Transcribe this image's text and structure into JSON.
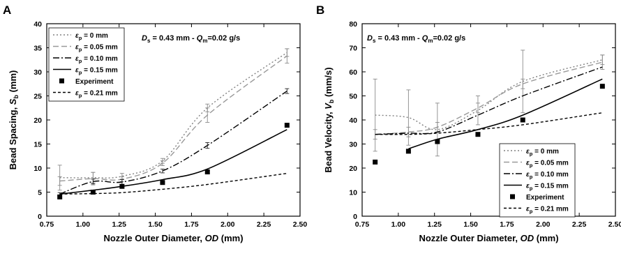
{
  "annotation": {
    "D": "D",
    "D_sub": "s",
    "mid": " = 0.43 mm - ",
    "Q": "Q",
    "Q_sub": "m",
    "tail": "=0.02 g/s"
  },
  "legend_entries": [
    {
      "eps": "ε",
      "sub": "p",
      "text": " = 0 mm"
    },
    {
      "eps": "ε",
      "sub": "p",
      "text": " = 0.05 mm"
    },
    {
      "eps": "ε",
      "sub": "p",
      "text": " = 0.10 mm"
    },
    {
      "eps": "ε",
      "sub": "p",
      "text": " = 0.15 mm"
    },
    {
      "eps": "",
      "sub": "",
      "text": "Experiment"
    },
    {
      "eps": "ε",
      "sub": "p",
      "text": " = 0.21 mm"
    }
  ],
  "styles": {
    "colors": {
      "eps0": "#808080",
      "eps005": "#999999",
      "eps010": "#000000",
      "eps015": "#000000",
      "eps021": "#000000",
      "experiment": "#000000"
    },
    "dash": {
      "eps0": "2,3",
      "eps005": "8,4",
      "eps010": "9,3,2,3",
      "eps015": "",
      "eps021": "4,3"
    }
  },
  "chart_data": [
    {
      "panel_label": "A",
      "type": "line",
      "xlabel": "Nozzle Outer Diameter, OD (mm)",
      "xlabel_parts": {
        "main": "Nozzle Outer Diameter, ",
        "italic": "OD",
        "tail": " (mm)"
      },
      "ylabel_parts": {
        "main": "Bead Spacing, ",
        "italic": "S",
        "sub": "b",
        "tail": " (mm)"
      },
      "xlim": [
        0.75,
        2.5
      ],
      "ylim": [
        0,
        40
      ],
      "xticks": [
        "0.75",
        "1.00",
        "1.25",
        "1.50",
        "1.75",
        "2.00",
        "2.25",
        "2.50"
      ],
      "yticks": [
        "0",
        "5",
        "10",
        "15",
        "20",
        "25",
        "30",
        "35",
        "40"
      ],
      "legend_position": "top-left",
      "series": [
        {
          "key": "eps0",
          "name": "εp = 0 mm",
          "x": [
            0.84,
            1.07,
            1.27,
            1.55,
            1.86,
            2.41
          ],
          "y": [
            8,
            8,
            8.3,
            11.5,
            22.5,
            34
          ],
          "yerr": [
            2.6,
            1.1,
            0.6,
            0.5,
            0.8,
            0.8
          ]
        },
        {
          "key": "eps005",
          "name": "εp = 0.05 mm",
          "x": [
            0.84,
            1.07,
            1.27,
            1.55,
            1.86,
            2.41
          ],
          "y": [
            7.3,
            7.8,
            7.7,
            11,
            21,
            33.3
          ],
          "yerr": [
            0.9,
            1.3,
            0.5,
            0.5,
            1.5,
            1.5
          ]
        },
        {
          "key": "eps010",
          "name": "εp = 0.10 mm",
          "x": [
            0.84,
            1.07,
            1.27,
            1.55,
            1.86,
            2.41
          ],
          "y": [
            4.6,
            7.2,
            7.1,
            9.4,
            14.7,
            26
          ],
          "yerr": [
            0.3,
            0.5,
            0.5,
            0.4,
            0.6,
            0.5
          ]
        },
        {
          "key": "eps015",
          "name": "εp = 0.15 mm",
          "x": [
            0.84,
            1.07,
            1.27,
            1.55,
            1.86,
            2.41
          ],
          "y": [
            4.6,
            5.4,
            6.2,
            7.6,
            9.8,
            18
          ]
        },
        {
          "key": "eps021",
          "name": "εp = 0.21 mm",
          "x": [
            0.84,
            1.07,
            1.27,
            1.55,
            1.86,
            2.41
          ],
          "y": [
            4.6,
            4.7,
            4.9,
            5.6,
            6.6,
            8.9
          ]
        }
      ],
      "experiment": {
        "x": [
          0.84,
          1.07,
          1.27,
          1.55,
          1.86,
          2.41
        ],
        "y": [
          4,
          5,
          6.2,
          7,
          9.2,
          18.9
        ]
      }
    },
    {
      "panel_label": "B",
      "type": "line",
      "xlabel": "Nozzle Outer Diameter, OD (mm)",
      "xlabel_parts": {
        "main": "Nozzle Outer Diameter, ",
        "italic": "OD",
        "tail": " (mm)"
      },
      "ylabel_parts": {
        "main": "Bead Velocity, ",
        "italic": "V",
        "sub": "b",
        "tail": " (mm/s)"
      },
      "xlim": [
        0.75,
        2.5
      ],
      "ylim": [
        0,
        80
      ],
      "xticks": [
        "0.75",
        "1.00",
        "1.25",
        "1.50",
        "1.75",
        "2.00",
        "2.25",
        "2.50"
      ],
      "yticks": [
        "0",
        "10",
        "20",
        "30",
        "40",
        "50",
        "60",
        "70",
        "80"
      ],
      "legend_position": "bottom-right",
      "series": [
        {
          "key": "eps0",
          "name": "εp = 0 mm",
          "x": [
            0.84,
            1.07,
            1.27,
            1.55,
            1.86,
            2.41
          ],
          "y": [
            42,
            41,
            36,
            44,
            56,
            65
          ],
          "yerr": [
            15,
            11.5,
            11,
            6,
            13,
            2
          ]
        },
        {
          "key": "eps005",
          "name": "εp = 0.05 mm",
          "x": [
            0.84,
            1.07,
            1.27,
            1.55,
            1.86,
            2.41
          ],
          "y": [
            34,
            35,
            37,
            45,
            55,
            64
          ],
          "yerr": [
            2,
            2,
            2,
            2,
            2,
            3
          ]
        },
        {
          "key": "eps010",
          "name": "εp = 0.10 mm",
          "x": [
            0.84,
            1.07,
            1.27,
            1.55,
            1.86,
            2.41
          ],
          "y": [
            34,
            34.5,
            35,
            42,
            50,
            62
          ]
        },
        {
          "key": "eps015",
          "name": "εp = 0.15 mm",
          "x": [
            1.07,
            1.27,
            1.55,
            1.86,
            2.41
          ],
          "y": [
            28,
            32,
            36,
            42,
            57
          ]
        },
        {
          "key": "eps021",
          "name": "εp = 0.21 mm",
          "x": [
            0.84,
            1.07,
            1.27,
            1.55,
            1.86,
            2.41
          ],
          "y": [
            34,
            34,
            34.5,
            36,
            38,
            43
          ]
        }
      ],
      "experiment": {
        "x": [
          0.84,
          1.07,
          1.27,
          1.55,
          1.86,
          2.41
        ],
        "y": [
          22.5,
          27,
          31,
          34,
          40,
          54
        ]
      }
    }
  ]
}
